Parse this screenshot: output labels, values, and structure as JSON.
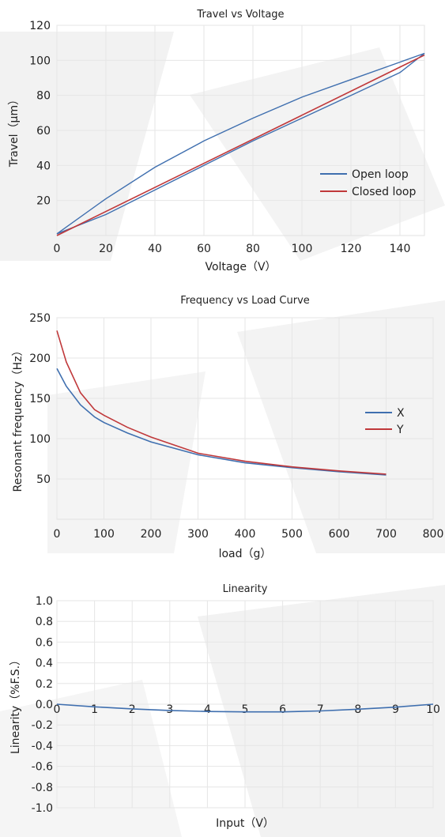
{
  "chart_data": [
    {
      "type": "line",
      "title": "Travel vs Voltage",
      "xlabel": "Voltage（V）",
      "ylabel": "Travel（μm）",
      "xlim": [
        0,
        150
      ],
      "ylim": [
        0,
        120
      ],
      "xticks": [
        0,
        20,
        40,
        60,
        80,
        100,
        120,
        140
      ],
      "yticks": [
        20,
        40,
        60,
        80,
        100,
        120
      ],
      "grid": true,
      "legend": "bottom-right",
      "series": [
        {
          "name": "Open loop",
          "color": "#3f6faf",
          "kind": "hysteresis",
          "x_up": [
            0,
            20,
            40,
            60,
            80,
            100,
            120,
            140,
            150
          ],
          "y_up": [
            1,
            12,
            26,
            40,
            54,
            67,
            80,
            93,
            104
          ],
          "x_down": [
            150,
            140,
            120,
            100,
            80,
            60,
            40,
            20,
            0
          ],
          "y_down": [
            104,
            99,
            89,
            79,
            67,
            54,
            39,
            21,
            1
          ]
        },
        {
          "name": "Closed loop",
          "color": "#c0383a",
          "kind": "line",
          "x": [
            0,
            150
          ],
          "y": [
            0,
            103
          ]
        }
      ]
    },
    {
      "type": "line",
      "title": "Frequency vs Load Curve",
      "xlabel": "load（g）",
      "ylabel": "Resonant frequency（Hz）",
      "xlim": [
        0,
        800
      ],
      "ylim": [
        0,
        250
      ],
      "xticks": [
        0,
        100,
        200,
        300,
        400,
        500,
        600,
        700,
        800
      ],
      "yticks": [
        50,
        100,
        150,
        200,
        250
      ],
      "grid": true,
      "legend": "right",
      "series": [
        {
          "name": "X",
          "color": "#3f6faf",
          "x": [
            0,
            20,
            50,
            80,
            100,
            150,
            200,
            300,
            400,
            500,
            600,
            700
          ],
          "y": [
            187,
            165,
            142,
            127,
            120,
            107,
            96,
            80,
            70,
            64,
            59,
            55
          ]
        },
        {
          "name": "Y",
          "color": "#c0383a",
          "x": [
            0,
            20,
            50,
            80,
            100,
            150,
            200,
            300,
            400,
            500,
            600,
            700
          ],
          "y": [
            234,
            195,
            157,
            136,
            129,
            114,
            102,
            82,
            72,
            65,
            60,
            56
          ]
        }
      ]
    },
    {
      "type": "line",
      "title": "Linearity",
      "xlabel": "Input（V）",
      "ylabel": "Linearity（%F.S.）",
      "xlim": [
        0,
        10
      ],
      "ylim": [
        -1.0,
        1.0
      ],
      "xticks": [
        0,
        1,
        2,
        3,
        4,
        5,
        6,
        7,
        8,
        9,
        10
      ],
      "yticks": [
        "1.0",
        "0.8",
        "0.6",
        "0.4",
        "0.2",
        "0.0",
        "-0.2",
        "-0.4",
        "-0.6",
        "-0.8",
        "-1.0"
      ],
      "grid": true,
      "series": [
        {
          "name": "",
          "color": "#3f6faf",
          "x": [
            0,
            1,
            2,
            3,
            4,
            5,
            6,
            7,
            8,
            9,
            10
          ],
          "y": [
            0.0,
            -0.025,
            -0.045,
            -0.06,
            -0.07,
            -0.074,
            -0.074,
            -0.065,
            -0.048,
            -0.028,
            0.0
          ]
        }
      ]
    }
  ]
}
